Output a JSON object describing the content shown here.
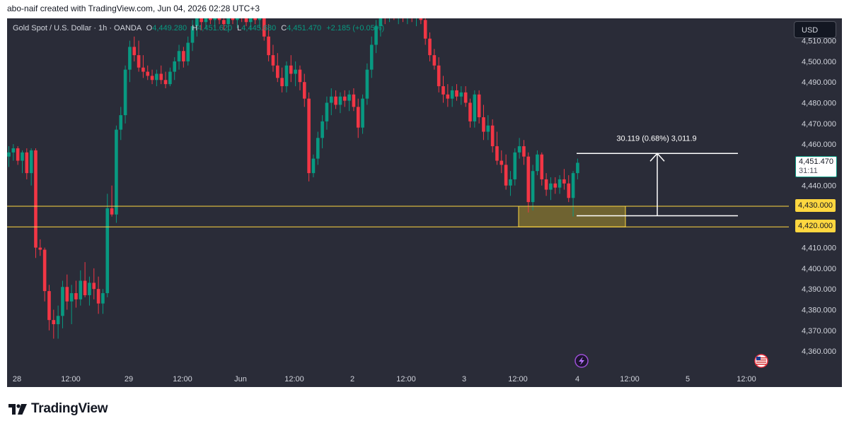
{
  "caption": "abo-naif created with TradingView.com, Jun 04, 2026 02:28 UTC+3",
  "legend": {
    "symbol": "Gold Spot / U.S. Dollar · 1h · OANDA",
    "open_label": "O",
    "open_value": "4,449.280",
    "high_label": "H",
    "high_value": "4,451.620",
    "low_label": "L",
    "low_value": "4,445.680",
    "close_label": "C",
    "close_value": "4,451.470",
    "change": "+2.185 (+0.05%)"
  },
  "currency": "USD",
  "last_price": {
    "value": "4,451.470",
    "countdown": "31:11"
  },
  "price_levels": {
    "upper": "4,430.000",
    "lower": "4,420.000"
  },
  "measure_label": "30.119 (0.68%) 3,011.9",
  "brand": "TradingView",
  "colors": {
    "up": "#089981",
    "down": "#f23645",
    "zone": "#ffd740",
    "background": "#2a2c38"
  },
  "event_icons": [
    "lightning-icon",
    "us-flag-icon"
  ],
  "chart_data": {
    "type": "candlestick",
    "symbol": "Gold Spot / U.S. Dollar",
    "interval": "1h",
    "y_ticks": [
      "4,510.000",
      "4,500.000",
      "4,490.000",
      "4,480.000",
      "4,470.000",
      "4,460.000",
      "4,440.000",
      "4,410.000",
      "4,400.000",
      "4,390.000",
      "4,380.000",
      "4,370.000",
      "4,360.000"
    ],
    "x_ticks": [
      "28",
      "12:00",
      "29",
      "12:00",
      "Jun",
      "12:00",
      "2",
      "12:00",
      "3",
      "12:00",
      "4",
      "12:00",
      "5",
      "12:00"
    ],
    "ylim": [
      4356,
      4526
    ],
    "horizontal_levels": [
      4430,
      4420
    ],
    "zone": {
      "from": "3 09:00",
      "to": "4 03:00",
      "low": 4420,
      "high": 4430
    },
    "measure": {
      "from_price": 4425.4,
      "to_price": 4455.5,
      "from": "4 03:00",
      "to": "4 12:00",
      "label": "30.119 (0.68%) 3,011.9"
    },
    "candles": [
      {
        "o": 4454,
        "h": 4459,
        "l": 4449,
        "c": 4456
      },
      {
        "o": 4456,
        "h": 4460,
        "l": 4452,
        "c": 4458
      },
      {
        "o": 4458,
        "h": 4459,
        "l": 4450,
        "c": 4452
      },
      {
        "o": 4452,
        "h": 4457,
        "l": 4446,
        "c": 4456
      },
      {
        "o": 4456,
        "h": 4458,
        "l": 4443,
        "c": 4446
      },
      {
        "o": 4446,
        "h": 4458,
        "l": 4440,
        "c": 4457
      },
      {
        "o": 4457,
        "h": 4458,
        "l": 4405,
        "c": 4410
      },
      {
        "o": 4410,
        "h": 4414,
        "l": 4406,
        "c": 4409
      },
      {
        "o": 4409,
        "h": 4410,
        "l": 4384,
        "c": 4389
      },
      {
        "o": 4389,
        "h": 4392,
        "l": 4370,
        "c": 4375
      },
      {
        "o": 4375,
        "h": 4380,
        "l": 4366,
        "c": 4373
      },
      {
        "o": 4373,
        "h": 4382,
        "l": 4366,
        "c": 4377
      },
      {
        "o": 4377,
        "h": 4394,
        "l": 4371,
        "c": 4391
      },
      {
        "o": 4391,
        "h": 4397,
        "l": 4380,
        "c": 4384
      },
      {
        "o": 4384,
        "h": 4392,
        "l": 4373,
        "c": 4388
      },
      {
        "o": 4388,
        "h": 4394,
        "l": 4381,
        "c": 4385
      },
      {
        "o": 4385,
        "h": 4399,
        "l": 4382,
        "c": 4394
      },
      {
        "o": 4394,
        "h": 4403,
        "l": 4386,
        "c": 4387
      },
      {
        "o": 4387,
        "h": 4396,
        "l": 4382,
        "c": 4393
      },
      {
        "o": 4393,
        "h": 4400,
        "l": 4385,
        "c": 4390
      },
      {
        "o": 4390,
        "h": 4396,
        "l": 4378,
        "c": 4383
      },
      {
        "o": 4383,
        "h": 4390,
        "l": 4378,
        "c": 4388
      },
      {
        "o": 4388,
        "h": 4436,
        "l": 4386,
        "c": 4429
      },
      {
        "o": 4429,
        "h": 4440,
        "l": 4425,
        "c": 4426
      },
      {
        "o": 4426,
        "h": 4469,
        "l": 4422,
        "c": 4467
      },
      {
        "o": 4467,
        "h": 4478,
        "l": 4462,
        "c": 4474
      },
      {
        "o": 4474,
        "h": 4498,
        "l": 4470,
        "c": 4496
      },
      {
        "o": 4496,
        "h": 4510,
        "l": 4490,
        "c": 4507
      },
      {
        "o": 4507,
        "h": 4512,
        "l": 4500,
        "c": 4503
      },
      {
        "o": 4503,
        "h": 4510,
        "l": 4495,
        "c": 4497
      },
      {
        "o": 4497,
        "h": 4503,
        "l": 4492,
        "c": 4495
      },
      {
        "o": 4495,
        "h": 4498,
        "l": 4491,
        "c": 4493
      },
      {
        "o": 4493,
        "h": 4496,
        "l": 4489,
        "c": 4491
      },
      {
        "o": 4491,
        "h": 4496,
        "l": 4488,
        "c": 4494
      },
      {
        "o": 4494,
        "h": 4498,
        "l": 4489,
        "c": 4491
      },
      {
        "o": 4491,
        "h": 4495,
        "l": 4487,
        "c": 4489
      },
      {
        "o": 4489,
        "h": 4497,
        "l": 4488,
        "c": 4495
      },
      {
        "o": 4495,
        "h": 4502,
        "l": 4491,
        "c": 4500
      },
      {
        "o": 4500,
        "h": 4508,
        "l": 4496,
        "c": 4505
      },
      {
        "o": 4505,
        "h": 4507,
        "l": 4497,
        "c": 4500
      },
      {
        "o": 4500,
        "h": 4512,
        "l": 4498,
        "c": 4509
      },
      {
        "o": 4509,
        "h": 4520,
        "l": 4505,
        "c": 4517
      },
      {
        "o": 4517,
        "h": 4526,
        "l": 4512,
        "c": 4524
      },
      {
        "o": 4524,
        "h": 4526,
        "l": 4515,
        "c": 4519
      },
      {
        "o": 4519,
        "h": 4526,
        "l": 4516,
        "c": 4523
      },
      {
        "o": 4523,
        "h": 4526,
        "l": 4518,
        "c": 4520
      },
      {
        "o": 4520,
        "h": 4526,
        "l": 4516,
        "c": 4522
      },
      {
        "o": 4522,
        "h": 4526,
        "l": 4518,
        "c": 4520
      },
      {
        "o": 4520,
        "h": 4526,
        "l": 4515,
        "c": 4518
      },
      {
        "o": 4518,
        "h": 4525,
        "l": 4514,
        "c": 4522
      },
      {
        "o": 4522,
        "h": 4526,
        "l": 4518,
        "c": 4520
      },
      {
        "o": 4520,
        "h": 4526,
        "l": 4516,
        "c": 4523
      },
      {
        "o": 4523,
        "h": 4526,
        "l": 4519,
        "c": 4521
      },
      {
        "o": 4521,
        "h": 4526,
        "l": 4517,
        "c": 4519
      },
      {
        "o": 4519,
        "h": 4526,
        "l": 4515,
        "c": 4522
      },
      {
        "o": 4522,
        "h": 4526,
        "l": 4518,
        "c": 4520
      },
      {
        "o": 4520,
        "h": 4526,
        "l": 4516,
        "c": 4524
      },
      {
        "o": 4524,
        "h": 4526,
        "l": 4510,
        "c": 4512
      },
      {
        "o": 4512,
        "h": 4518,
        "l": 4500,
        "c": 4503
      },
      {
        "o": 4503,
        "h": 4508,
        "l": 4495,
        "c": 4498
      },
      {
        "o": 4498,
        "h": 4504,
        "l": 4490,
        "c": 4492
      },
      {
        "o": 4492,
        "h": 4497,
        "l": 4485,
        "c": 4488
      },
      {
        "o": 4488,
        "h": 4500,
        "l": 4485,
        "c": 4498
      },
      {
        "o": 4498,
        "h": 4503,
        "l": 4490,
        "c": 4494
      },
      {
        "o": 4494,
        "h": 4500,
        "l": 4488,
        "c": 4496
      },
      {
        "o": 4496,
        "h": 4498,
        "l": 4486,
        "c": 4490
      },
      {
        "o": 4490,
        "h": 4494,
        "l": 4478,
        "c": 4482
      },
      {
        "o": 4482,
        "h": 4485,
        "l": 4442,
        "c": 4446
      },
      {
        "o": 4446,
        "h": 4455,
        "l": 4444,
        "c": 4453
      },
      {
        "o": 4453,
        "h": 4466,
        "l": 4450,
        "c": 4463
      },
      {
        "o": 4463,
        "h": 4474,
        "l": 4458,
        "c": 4471
      },
      {
        "o": 4471,
        "h": 4483,
        "l": 4467,
        "c": 4480
      },
      {
        "o": 4480,
        "h": 4487,
        "l": 4474,
        "c": 4483
      },
      {
        "o": 4483,
        "h": 4486,
        "l": 4477,
        "c": 4479
      },
      {
        "o": 4479,
        "h": 4485,
        "l": 4475,
        "c": 4483
      },
      {
        "o": 4483,
        "h": 4486,
        "l": 4478,
        "c": 4481
      },
      {
        "o": 4481,
        "h": 4486,
        "l": 4476,
        "c": 4484
      },
      {
        "o": 4484,
        "h": 4487,
        "l": 4476,
        "c": 4478
      },
      {
        "o": 4478,
        "h": 4482,
        "l": 4463,
        "c": 4468
      },
      {
        "o": 4468,
        "h": 4484,
        "l": 4465,
        "c": 4482
      },
      {
        "o": 4482,
        "h": 4499,
        "l": 4479,
        "c": 4496
      },
      {
        "o": 4496,
        "h": 4512,
        "l": 4492,
        "c": 4508
      },
      {
        "o": 4508,
        "h": 4520,
        "l": 4504,
        "c": 4517
      },
      {
        "o": 4517,
        "h": 4526,
        "l": 4512,
        "c": 4524
      },
      {
        "o": 4524,
        "h": 4526,
        "l": 4518,
        "c": 4521
      },
      {
        "o": 4521,
        "h": 4526,
        "l": 4519,
        "c": 4525
      },
      {
        "o": 4525,
        "h": 4526,
        "l": 4520,
        "c": 4522
      },
      {
        "o": 4522,
        "h": 4526,
        "l": 4518,
        "c": 4524
      },
      {
        "o": 4524,
        "h": 4526,
        "l": 4519,
        "c": 4521
      },
      {
        "o": 4521,
        "h": 4526,
        "l": 4518,
        "c": 4523
      },
      {
        "o": 4523,
        "h": 4526,
        "l": 4519,
        "c": 4521
      },
      {
        "o": 4521,
        "h": 4526,
        "l": 4517,
        "c": 4524
      },
      {
        "o": 4524,
        "h": 4526,
        "l": 4518,
        "c": 4520
      },
      {
        "o": 4520,
        "h": 4526,
        "l": 4508,
        "c": 4511
      },
      {
        "o": 4511,
        "h": 4514,
        "l": 4500,
        "c": 4503
      },
      {
        "o": 4503,
        "h": 4506,
        "l": 4496,
        "c": 4498
      },
      {
        "o": 4498,
        "h": 4502,
        "l": 4485,
        "c": 4488
      },
      {
        "o": 4488,
        "h": 4493,
        "l": 4480,
        "c": 4484
      },
      {
        "o": 4484,
        "h": 4489,
        "l": 4478,
        "c": 4482
      },
      {
        "o": 4482,
        "h": 4488,
        "l": 4478,
        "c": 4486
      },
      {
        "o": 4486,
        "h": 4489,
        "l": 4481,
        "c": 4483
      },
      {
        "o": 4483,
        "h": 4488,
        "l": 4479,
        "c": 4485
      },
      {
        "o": 4485,
        "h": 4488,
        "l": 4478,
        "c": 4480
      },
      {
        "o": 4480,
        "h": 4482,
        "l": 4468,
        "c": 4471
      },
      {
        "o": 4471,
        "h": 4486,
        "l": 4468,
        "c": 4484
      },
      {
        "o": 4484,
        "h": 4486,
        "l": 4470,
        "c": 4473
      },
      {
        "o": 4473,
        "h": 4479,
        "l": 4462,
        "c": 4466
      },
      {
        "o": 4466,
        "h": 4474,
        "l": 4462,
        "c": 4469
      },
      {
        "o": 4469,
        "h": 4472,
        "l": 4456,
        "c": 4459
      },
      {
        "o": 4459,
        "h": 4466,
        "l": 4450,
        "c": 4452
      },
      {
        "o": 4452,
        "h": 4457,
        "l": 4446,
        "c": 4450
      },
      {
        "o": 4450,
        "h": 4455,
        "l": 4438,
        "c": 4440
      },
      {
        "o": 4440,
        "h": 4447,
        "l": 4435,
        "c": 4443
      },
      {
        "o": 4443,
        "h": 4458,
        "l": 4440,
        "c": 4456
      },
      {
        "o": 4456,
        "h": 4463,
        "l": 4453,
        "c": 4459
      },
      {
        "o": 4459,
        "h": 4462,
        "l": 4450,
        "c": 4454
      },
      {
        "o": 4454,
        "h": 4456,
        "l": 4427,
        "c": 4432
      },
      {
        "o": 4432,
        "h": 4450,
        "l": 4428,
        "c": 4447
      },
      {
        "o": 4447,
        "h": 4457,
        "l": 4445,
        "c": 4455
      },
      {
        "o": 4455,
        "h": 4456,
        "l": 4440,
        "c": 4443
      },
      {
        "o": 4443,
        "h": 4446,
        "l": 4435,
        "c": 4438
      },
      {
        "o": 4438,
        "h": 4444,
        "l": 4433,
        "c": 4441
      },
      {
        "o": 4441,
        "h": 4444,
        "l": 4436,
        "c": 4439
      },
      {
        "o": 4439,
        "h": 4445,
        "l": 4436,
        "c": 4443
      },
      {
        "o": 4443,
        "h": 4448,
        "l": 4438,
        "c": 4441
      },
      {
        "o": 4441,
        "h": 4445,
        "l": 4432,
        "c": 4434
      },
      {
        "o": 4434,
        "h": 4447,
        "l": 4425,
        "c": 4446
      },
      {
        "o": 4446,
        "h": 4453,
        "l": 4443,
        "c": 4451
      }
    ]
  }
}
